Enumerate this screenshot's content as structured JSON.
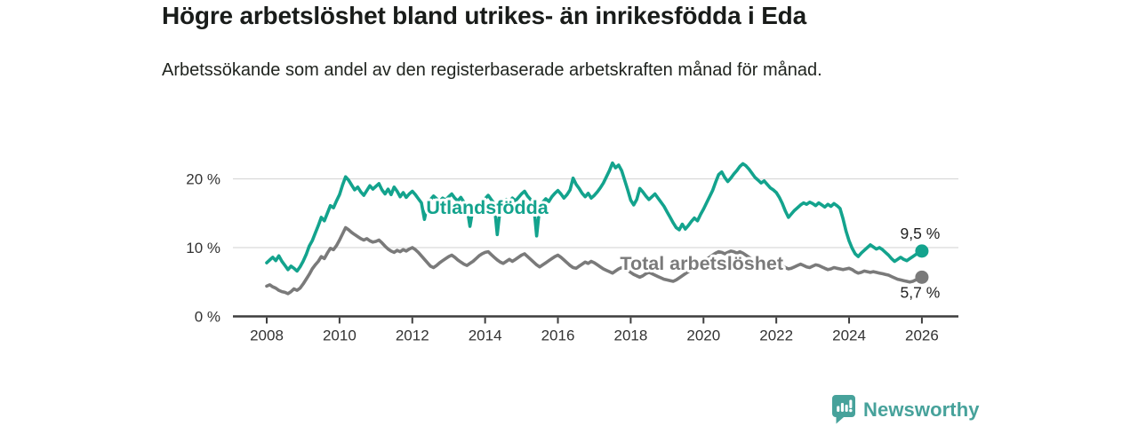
{
  "footer": {
    "brand": "Newsworthy",
    "brand_color": "#47a29b",
    "logo_icon": "bar-chart-speech-bubble-icon"
  },
  "chart_data": {
    "type": "line",
    "title": "Högre arbetslöshet bland utrikes- än inrikesfödda i Eda",
    "subtitle": "Arbetssökande som andel av den registerbaserade arbetskraften månad för månad.",
    "x_unit": "year-month",
    "x_start": 2008.0,
    "x_step": 0.0833333,
    "xlim": [
      2007.05,
      2027.0
    ],
    "ylim": [
      0,
      23
    ],
    "grid": "horizontal",
    "legend_position": "inline-labels",
    "xticks": [
      "2008",
      "2010",
      "2012",
      "2014",
      "2016",
      "2018",
      "2020",
      "2022",
      "2024",
      "2026"
    ],
    "xtick_years": [
      2008,
      2010,
      2012,
      2014,
      2016,
      2018,
      2020,
      2022,
      2024,
      2026
    ],
    "yticks": [
      {
        "value": 0,
        "label": "0 %"
      },
      {
        "value": 10,
        "label": "10 %"
      },
      {
        "value": 20,
        "label": "20 %"
      }
    ],
    "colors": {
      "grid": "#d9d9d9",
      "axis": "#3d3d3d",
      "tick_text": "#333333",
      "end_label_text": "#1f1f1f"
    },
    "series": [
      {
        "name": "Total arbetslöshet",
        "color": "#7a7a7a",
        "end_label": "5,7 %",
        "end_label_side": "below",
        "label_anchor": {
          "x": 2019.95,
          "y": 7.7
        },
        "values": [
          4.4,
          4.6,
          4.3,
          4.1,
          3.8,
          3.6,
          3.5,
          3.3,
          3.6,
          4.0,
          3.8,
          4.1,
          4.7,
          5.4,
          6.1,
          6.9,
          7.5,
          8.0,
          8.7,
          8.4,
          9.2,
          9.9,
          9.7,
          10.3,
          11.1,
          12.0,
          12.9,
          12.6,
          12.2,
          11.9,
          11.6,
          11.3,
          11.1,
          11.3,
          11.0,
          10.8,
          10.9,
          11.1,
          10.7,
          10.2,
          9.8,
          9.5,
          9.3,
          9.6,
          9.4,
          9.7,
          9.5,
          9.8,
          10.0,
          9.7,
          9.3,
          8.8,
          8.3,
          7.8,
          7.3,
          7.1,
          7.4,
          7.8,
          8.1,
          8.4,
          8.7,
          8.9,
          8.6,
          8.2,
          7.9,
          7.6,
          7.4,
          7.7,
          8.0,
          8.4,
          8.8,
          9.1,
          9.3,
          9.4,
          9.0,
          8.6,
          8.2,
          7.9,
          7.7,
          8.0,
          8.3,
          8.0,
          8.3,
          8.6,
          8.9,
          9.1,
          8.7,
          8.3,
          7.9,
          7.5,
          7.2,
          7.5,
          7.8,
          8.1,
          8.4,
          8.7,
          8.9,
          8.6,
          8.2,
          7.8,
          7.4,
          7.1,
          7.0,
          7.3,
          7.6,
          7.9,
          7.7,
          8.0,
          7.8,
          7.5,
          7.2,
          6.9,
          6.7,
          6.5,
          6.3,
          6.6,
          6.9,
          7.1,
          6.9,
          6.7,
          6.4,
          6.1,
          5.9,
          5.7,
          5.9,
          6.2,
          6.4,
          6.2,
          6.0,
          5.8,
          5.6,
          5.4,
          5.3,
          5.2,
          5.1,
          5.3,
          5.6,
          5.9,
          6.2,
          6.5,
          6.8,
          7.1,
          7.4,
          7.7,
          8.0,
          8.3,
          8.6,
          8.9,
          9.2,
          9.4,
          9.3,
          9.1,
          9.3,
          9.5,
          9.4,
          9.2,
          9.4,
          9.2,
          8.9,
          8.6,
          8.3,
          8.0,
          7.8,
          7.6,
          7.4,
          7.3,
          7.2,
          7.3,
          7.4,
          7.5,
          7.3,
          7.1,
          6.9,
          7.0,
          7.2,
          7.4,
          7.6,
          7.4,
          7.2,
          7.1,
          7.3,
          7.5,
          7.4,
          7.2,
          7.0,
          6.8,
          6.9,
          7.1,
          7.0,
          6.9,
          6.8,
          6.9,
          7.0,
          6.8,
          6.5,
          6.3,
          6.4,
          6.6,
          6.5,
          6.4,
          6.5,
          6.4,
          6.3,
          6.2,
          6.1,
          6.0,
          5.8,
          5.6,
          5.4,
          5.3,
          5.2,
          5.1,
          5.0,
          5.1,
          5.3,
          5.5,
          5.7
        ]
      },
      {
        "name": "Utlandsfödda",
        "color": "#13a38d",
        "end_label": "9,5 %",
        "end_label_side": "above",
        "label_anchor": {
          "x": 2014.06,
          "y": 15.8
        },
        "values": [
          7.8,
          8.2,
          8.6,
          8.1,
          8.8,
          8.0,
          7.4,
          6.8,
          7.3,
          7.0,
          6.6,
          7.2,
          8.0,
          9.0,
          10.2,
          11.0,
          12.1,
          13.2,
          14.4,
          13.9,
          15.0,
          16.1,
          15.8,
          16.8,
          17.7,
          19.1,
          20.3,
          19.8,
          19.1,
          18.4,
          18.8,
          18.1,
          17.6,
          18.3,
          19.0,
          18.5,
          18.9,
          19.3,
          18.4,
          17.8,
          18.5,
          17.7,
          18.8,
          18.2,
          17.4,
          18.0,
          17.3,
          17.8,
          18.2,
          17.7,
          17.1,
          16.5,
          14.1,
          16.3,
          17.0,
          17.5,
          17.1,
          16.7,
          17.2,
          16.9,
          17.4,
          17.8,
          17.2,
          16.8,
          17.3,
          16.6,
          15.9,
          13.1,
          15.7,
          16.4,
          16.0,
          16.6,
          17.1,
          17.6,
          17.0,
          16.4,
          11.9,
          15.8,
          16.5,
          17.0,
          16.6,
          17.2,
          16.8,
          17.3,
          17.8,
          18.2,
          17.5,
          17.0,
          16.4,
          11.7,
          15.9,
          16.6,
          17.1,
          16.7,
          17.4,
          17.9,
          18.3,
          17.8,
          17.2,
          17.7,
          18.4,
          20.1,
          19.2,
          18.6,
          17.9,
          17.4,
          17.9,
          17.2,
          17.6,
          18.1,
          18.7,
          19.4,
          20.3,
          21.2,
          22.3,
          21.6,
          22.0,
          21.2,
          19.8,
          18.4,
          16.9,
          16.2,
          17.0,
          18.6,
          18.1,
          17.5,
          17.0,
          17.4,
          17.8,
          17.2,
          16.6,
          16.0,
          15.2,
          14.4,
          13.6,
          12.9,
          12.6,
          13.4,
          12.7,
          13.2,
          13.8,
          14.3,
          13.9,
          14.8,
          15.6,
          16.5,
          17.4,
          18.3,
          19.5,
          20.6,
          21.0,
          20.2,
          19.6,
          20.1,
          20.7,
          21.2,
          21.8,
          22.2,
          21.9,
          21.4,
          20.8,
          20.2,
          19.8,
          19.4,
          19.7,
          19.2,
          18.7,
          18.4,
          18.0,
          17.3,
          16.4,
          15.3,
          14.4,
          14.9,
          15.4,
          15.8,
          16.2,
          16.5,
          16.3,
          16.6,
          16.4,
          16.1,
          16.5,
          16.2,
          15.9,
          16.3,
          16.0,
          16.4,
          16.1,
          15.7,
          14.2,
          12.4,
          11.0,
          9.9,
          9.1,
          8.7,
          9.2,
          9.6,
          10.0,
          10.4,
          10.1,
          9.8,
          10.0,
          9.7,
          9.3,
          8.9,
          8.4,
          8.0,
          8.3,
          8.6,
          8.3,
          8.1,
          8.4,
          8.7,
          9.0,
          9.2,
          9.5
        ]
      }
    ]
  }
}
